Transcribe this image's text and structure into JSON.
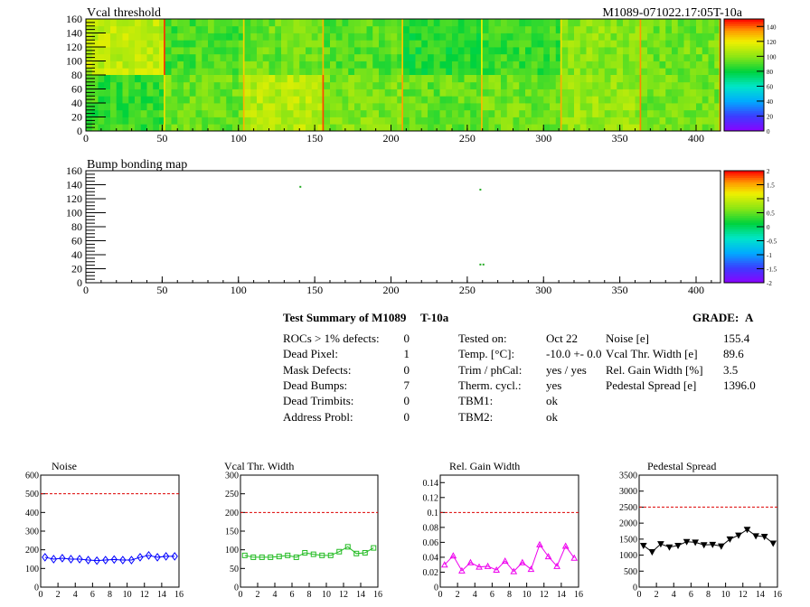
{
  "header": {
    "vcal_title": "Vcal threshold",
    "module_id": "M1089-071022.17:05T-10a",
    "bump_title": "Bump bonding map"
  },
  "summary": {
    "title": "Test Summary of M1089",
    "temp_label": "T-10a",
    "grade_label": "GRADE:",
    "grade_value": "A",
    "defects": [
      {
        "label": "ROCs > 1% defects:",
        "value": "0"
      },
      {
        "label": "Dead Pixel:",
        "value": "1"
      },
      {
        "label": "Mask Defects:",
        "value": "0"
      },
      {
        "label": "Dead Bumps:",
        "value": "7"
      },
      {
        "label": "Dead Trimbits:",
        "value": "0"
      },
      {
        "label": "Address Probl:",
        "value": "0"
      }
    ],
    "conditions": [
      {
        "label": "Tested on:",
        "value": "Oct 22"
      },
      {
        "label": "Temp. [°C]:",
        "value": "-10.0 +- 0.0"
      },
      {
        "label": "Trim / phCal:",
        "value": "yes / yes"
      },
      {
        "label": "Therm. cycl.:",
        "value": "yes"
      },
      {
        "label": "TBM1:",
        "value": "ok"
      },
      {
        "label": "TBM2:",
        "value": "ok"
      }
    ],
    "results": [
      {
        "label": "Noise [e]",
        "value": "155.4"
      },
      {
        "label": "Vcal Thr. Width [e]",
        "value": "89.6"
      },
      {
        "label": "Rel. Gain Width [%]",
        "value": "3.5"
      },
      {
        "label": "Pedestal Spread [e]",
        "value": "1396.0"
      }
    ]
  },
  "colors": {
    "noise": "#0000ff",
    "vcal": "#22bb22",
    "gain": "#ee00ee",
    "pedestal": "#000000",
    "limit": "#dd0000"
  },
  "chart_data": [
    {
      "type": "heatmap",
      "title": "Vcal threshold",
      "xlim": [
        0,
        416
      ],
      "ylim": [
        0,
        160
      ],
      "xticks": [
        0,
        50,
        100,
        150,
        200,
        250,
        300,
        350,
        400
      ],
      "yticks": [
        0,
        20,
        40,
        60,
        80,
        100,
        120,
        140,
        160
      ],
      "zlim": [
        0,
        150
      ],
      "zticks": [
        0,
        20,
        40,
        60,
        80,
        100,
        120,
        140
      ],
      "roc_values": [
        110,
        90,
        95,
        92,
        85,
        88,
        100,
        96,
        90,
        92,
        110,
        100,
        88,
        84,
        86,
        90,
        88,
        95,
        108,
        98,
        94,
        96,
        102,
        96,
        100,
        104,
        95,
        92,
        96,
        94,
        98,
        92
      ]
    },
    {
      "type": "heatmap",
      "title": "Bump bonding map",
      "xlim": [
        0,
        416
      ],
      "ylim": [
        0,
        160
      ],
      "xticks": [
        0,
        50,
        100,
        150,
        200,
        250,
        300,
        350,
        400
      ],
      "yticks": [
        0,
        20,
        40,
        60,
        80,
        100,
        120,
        140,
        160
      ],
      "zlim": [
        -2,
        2
      ],
      "zticks": [
        -2,
        -1.5,
        -1,
        -0.5,
        0,
        0.5,
        1,
        1.5,
        2
      ],
      "hits": [
        [
          140,
          137
        ],
        [
          258,
          133
        ],
        [
          258,
          26
        ],
        [
          260,
          26
        ]
      ]
    },
    {
      "type": "line",
      "title": "Noise",
      "xlim": [
        0,
        16
      ],
      "ylim": [
        0,
        600
      ],
      "xticks": [
        0,
        2,
        4,
        6,
        8,
        10,
        12,
        14,
        16
      ],
      "yticks": [
        0,
        100,
        200,
        300,
        400,
        500,
        600
      ],
      "limit": 500,
      "x": [
        0.5,
        1.5,
        2.5,
        3.5,
        4.5,
        5.5,
        6.5,
        7.5,
        8.5,
        9.5,
        10.5,
        11.5,
        12.5,
        13.5,
        14.5,
        15.5
      ],
      "values": [
        160,
        150,
        155,
        150,
        150,
        145,
        142,
        145,
        148,
        145,
        145,
        160,
        170,
        160,
        165,
        165
      ]
    },
    {
      "type": "line",
      "title": "Vcal Thr. Width",
      "xlim": [
        0,
        16
      ],
      "ylim": [
        0,
        300
      ],
      "xticks": [
        0,
        2,
        4,
        6,
        8,
        10,
        12,
        14,
        16
      ],
      "yticks": [
        0,
        50,
        100,
        150,
        200,
        250,
        300
      ],
      "limit": 200,
      "x": [
        0.5,
        1.5,
        2.5,
        3.5,
        4.5,
        5.5,
        6.5,
        7.5,
        8.5,
        9.5,
        10.5,
        11.5,
        12.5,
        13.5,
        14.5,
        15.5
      ],
      "values": [
        85,
        80,
        80,
        80,
        82,
        85,
        80,
        92,
        88,
        85,
        85,
        95,
        108,
        90,
        92,
        105
      ]
    },
    {
      "type": "line",
      "title": "Rel. Gain Width",
      "xlim": [
        0,
        16
      ],
      "ylim": [
        0,
        0.15
      ],
      "xticks": [
        0,
        2,
        4,
        6,
        8,
        10,
        12,
        14,
        16
      ],
      "yticks": [
        0,
        0.02,
        0.04,
        0.06,
        0.08,
        0.1,
        0.12,
        0.14
      ],
      "limit": 0.1,
      "x": [
        0.5,
        1.5,
        2.5,
        3.5,
        4.5,
        5.5,
        6.5,
        7.5,
        8.5,
        9.5,
        10.5,
        11.5,
        12.5,
        13.5,
        14.5,
        15.5
      ],
      "values": [
        0.03,
        0.042,
        0.022,
        0.033,
        0.027,
        0.028,
        0.023,
        0.035,
        0.021,
        0.033,
        0.024,
        0.057,
        0.041,
        0.028,
        0.055,
        0.039
      ]
    },
    {
      "type": "line",
      "title": "Pedestal Spread",
      "xlim": [
        0,
        16
      ],
      "ylim": [
        0,
        3500
      ],
      "xticks": [
        0,
        2,
        4,
        6,
        8,
        10,
        12,
        14,
        16
      ],
      "yticks": [
        0,
        500,
        1000,
        1500,
        2000,
        2500,
        3000,
        3500
      ],
      "limit": 2500,
      "x": [
        0.5,
        1.5,
        2.5,
        3.5,
        4.5,
        5.5,
        6.5,
        7.5,
        8.5,
        9.5,
        10.5,
        11.5,
        12.5,
        13.5,
        14.5,
        15.5
      ],
      "values": [
        1300,
        1100,
        1350,
        1250,
        1300,
        1420,
        1400,
        1320,
        1330,
        1280,
        1500,
        1620,
        1800,
        1600,
        1580,
        1370
      ]
    }
  ]
}
